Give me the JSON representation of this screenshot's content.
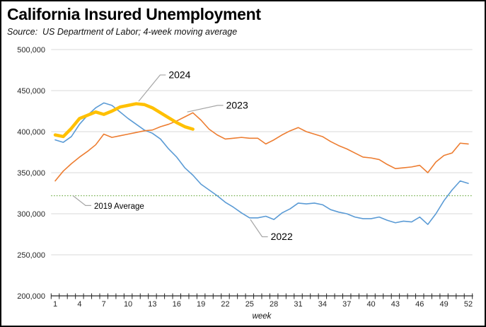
{
  "header": {
    "title": "California Insured Unemployment",
    "source": "Source:  US Department of Labor; 4-week moving average"
  },
  "chart_data": {
    "type": "line",
    "title": "California Insured Unemployment",
    "source_note": "Source: US Department of Labor; 4-week moving average",
    "xlabel": "week",
    "xlim": [
      1,
      52
    ],
    "ylim": [
      200000,
      500000
    ],
    "grid": "horizontal",
    "legend": "none (direct line labels)",
    "colors": {
      "gridline": "#D9D9D9",
      "axis": "#262626",
      "leader": "#A6A6A6",
      "text": "#000000",
      "blue_2022": "#5B9BD5",
      "orange_2023": "#ED7D31",
      "gold_2024": "#FFC000",
      "green_2019": "#70AD47"
    },
    "yticks": [
      {
        "value": 200000,
        "label": "200,000"
      },
      {
        "value": 250000,
        "label": "250,000"
      },
      {
        "value": 300000,
        "label": "300,000"
      },
      {
        "value": 350000,
        "label": "350,000"
      },
      {
        "value": 400000,
        "label": "400,000"
      },
      {
        "value": 450000,
        "label": "450,000"
      },
      {
        "value": 500000,
        "label": "500,000"
      }
    ],
    "xticks": [
      1,
      4,
      7,
      10,
      13,
      16,
      19,
      22,
      25,
      28,
      31,
      34,
      37,
      40,
      43,
      46,
      49,
      52
    ],
    "series": [
      {
        "name": "2022",
        "color": "#5B9BD5",
        "line_width": 1.6,
        "start_week": 1,
        "values": [
          390000,
          387000,
          394000,
          409000,
          420000,
          429000,
          435000,
          432000,
          424000,
          416000,
          409000,
          402000,
          398000,
          391000,
          379000,
          369000,
          356000,
          347000,
          336000,
          329000,
          322000,
          314000,
          308000,
          301000,
          295000,
          295000,
          297000,
          293000,
          301000,
          306000,
          313000,
          312000,
          313000,
          311000,
          305000,
          302000,
          300000,
          296000,
          294000,
          294000,
          296000,
          292000,
          289000,
          291000,
          290000,
          296000,
          287000,
          300000,
          316000,
          329000,
          340000,
          337000
        ]
      },
      {
        "name": "2023",
        "color": "#ED7D31",
        "line_width": 1.6,
        "start_week": 1,
        "values": [
          340000,
          352000,
          361000,
          369000,
          376000,
          384000,
          397000,
          393000,
          395000,
          397000,
          399000,
          401000,
          402000,
          406000,
          409000,
          413000,
          418000,
          423000,
          414000,
          403000,
          396000,
          391000,
          392000,
          393000,
          392000,
          392000,
          385000,
          390000,
          396000,
          401000,
          405000,
          400000,
          397000,
          394000,
          388000,
          383000,
          379000,
          374000,
          369000,
          368000,
          366000,
          360000,
          355000,
          356000,
          357000,
          359000,
          350000,
          363000,
          371000,
          374000,
          386000,
          385000
        ]
      },
      {
        "name": "2024",
        "color": "#FFC000",
        "line_width": 4.5,
        "start_week": 1,
        "values": [
          396000,
          394000,
          404000,
          416000,
          420000,
          424000,
          421000,
          425000,
          430000,
          432000,
          434000,
          433000,
          429000,
          423000,
          417000,
          411000,
          406000,
          403000
        ]
      }
    ],
    "reference_line": {
      "label": "2019 Average",
      "value": 322000,
      "color": "#70AD47",
      "style": "dotted"
    },
    "annotations": [
      {
        "text": "2024",
        "type": "series-label",
        "label_week": 15.0,
        "label_value": 469000,
        "point_week": 11.3,
        "point_value": 437000
      },
      {
        "text": "2023",
        "type": "series-label",
        "label_week": 22.1,
        "label_value": 432000,
        "point_week": 17.3,
        "point_value": 424000
      },
      {
        "text": "2022",
        "type": "series-label",
        "label_week": 27.6,
        "label_value": 272000,
        "point_week": 25.1,
        "point_value": 293000
      },
      {
        "text": "2019 Average",
        "type": "reference-label",
        "label_week": 5.8,
        "label_value": 310000,
        "point_week": 3.2,
        "point_value": 322000
      }
    ]
  }
}
